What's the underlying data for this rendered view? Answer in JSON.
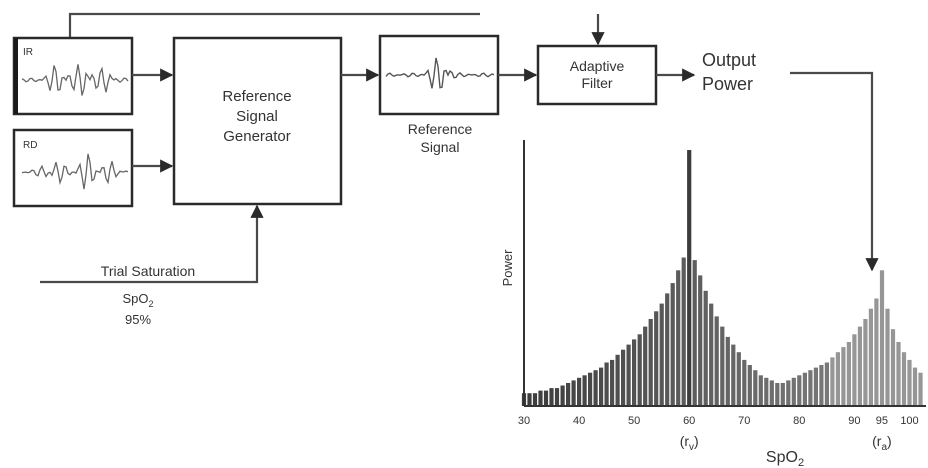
{
  "signals": {
    "ir_label": "IR",
    "rd_label": "RD"
  },
  "blocks": {
    "reference_generator": [
      "Reference",
      "Signal",
      "Generator"
    ],
    "reference_signal": [
      "Reference",
      "Signal"
    ],
    "adaptive_filter": [
      "Adaptive",
      "Filter"
    ],
    "output_power": [
      "Output",
      "Power"
    ]
  },
  "trial": {
    "label": "Trial Saturation",
    "spo2_label": "SpO",
    "spo2_sub": "2",
    "value": "95%"
  },
  "chart_data": {
    "type": "bar",
    "title": "",
    "xlabel": "SpO",
    "xlabel_sub": "2",
    "ylabel": "Power",
    "xlim": [
      30,
      103
    ],
    "ylim": [
      0,
      100
    ],
    "x_ticks": [
      "30",
      "40",
      "50",
      "60",
      "70",
      "80",
      "90",
      "95",
      "100"
    ],
    "x_tick_values": [
      30,
      40,
      50,
      60,
      70,
      80,
      90,
      95,
      100
    ],
    "peak_labels": [
      {
        "x": 60,
        "text": "(r",
        "sub": "v",
        "close": ")"
      },
      {
        "x": 95,
        "text": "(r",
        "sub": "a",
        "close": ")"
      }
    ],
    "x": [
      30,
      31,
      32,
      33,
      34,
      35,
      36,
      37,
      38,
      39,
      40,
      41,
      42,
      43,
      44,
      45,
      46,
      47,
      48,
      49,
      50,
      51,
      52,
      53,
      54,
      55,
      56,
      57,
      58,
      59,
      60,
      61,
      62,
      63,
      64,
      65,
      66,
      67,
      68,
      69,
      70,
      71,
      72,
      73,
      74,
      75,
      76,
      77,
      78,
      79,
      80,
      81,
      82,
      83,
      84,
      85,
      86,
      87,
      88,
      89,
      90,
      91,
      92,
      93,
      94,
      95,
      96,
      97,
      98,
      99,
      100,
      101,
      102
    ],
    "values": [
      5,
      5,
      5,
      6,
      6,
      7,
      7,
      8,
      9,
      10,
      11,
      12,
      13,
      14,
      15,
      17,
      18,
      20,
      22,
      24,
      26,
      28,
      31,
      34,
      37,
      40,
      44,
      48,
      53,
      58,
      100,
      57,
      51,
      45,
      40,
      35,
      31,
      27,
      24,
      21,
      18,
      16,
      14,
      12,
      11,
      10,
      9,
      9,
      10,
      11,
      12,
      13,
      14,
      15,
      16,
      17,
      19,
      21,
      23,
      25,
      28,
      31,
      34,
      38,
      42,
      53,
      38,
      30,
      25,
      21,
      18,
      15,
      13
    ]
  }
}
